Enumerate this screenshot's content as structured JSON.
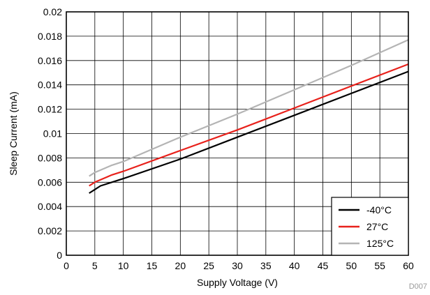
{
  "chart_data": {
    "type": "line",
    "title": "",
    "xlabel": "Supply Voltage (V)",
    "ylabel": "Sleep Current (mA)",
    "xlim": [
      0,
      60
    ],
    "ylim": [
      0,
      0.02
    ],
    "x_ticks": [
      "0",
      "5",
      "10",
      "15",
      "20",
      "25",
      "30",
      "35",
      "40",
      "45",
      "50",
      "55",
      "60"
    ],
    "y_ticks": [
      "0",
      "0.002",
      "0.004",
      "0.006",
      "0.008",
      "0.01",
      "0.012",
      "0.014",
      "0.016",
      "0.018",
      "0.02"
    ],
    "grid": true,
    "legend_position": "bottom-right",
    "series": [
      {
        "name": "-40°C",
        "color": "#000000",
        "points": [
          [
            4,
            0.0051
          ],
          [
            5,
            0.0054
          ],
          [
            6,
            0.0057
          ],
          [
            8,
            0.006
          ],
          [
            10,
            0.0063
          ],
          [
            20,
            0.0079
          ],
          [
            30,
            0.0097
          ],
          [
            40,
            0.0115
          ],
          [
            50,
            0.0133
          ],
          [
            60,
            0.0151
          ]
        ]
      },
      {
        "name": "27°C",
        "color": "#e8211b",
        "points": [
          [
            4,
            0.0057
          ],
          [
            5,
            0.006
          ],
          [
            6,
            0.0062
          ],
          [
            8,
            0.0066
          ],
          [
            10,
            0.0069
          ],
          [
            20,
            0.0086
          ],
          [
            30,
            0.0103
          ],
          [
            40,
            0.0121
          ],
          [
            50,
            0.0139
          ],
          [
            60,
            0.0157
          ]
        ]
      },
      {
        "name": "125°C",
        "color": "#b4b4b4",
        "points": [
          [
            4,
            0.0065
          ],
          [
            5,
            0.0068
          ],
          [
            6,
            0.007
          ],
          [
            8,
            0.0074
          ],
          [
            10,
            0.0077
          ],
          [
            20,
            0.0097
          ],
          [
            30,
            0.0116
          ],
          [
            40,
            0.0136
          ],
          [
            50,
            0.0156
          ],
          [
            60,
            0.0177
          ]
        ]
      }
    ],
    "figure_id": "D007"
  }
}
